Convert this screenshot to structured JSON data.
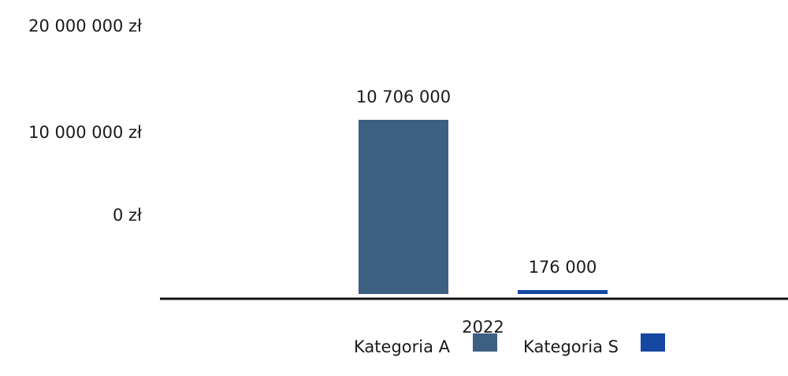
{
  "chart_data": {
    "type": "bar",
    "categories": [
      "2022"
    ],
    "series": [
      {
        "name": "Kategoria A",
        "values": [
          10706000
        ],
        "color": "#3d5f82",
        "label": "10 706 000"
      },
      {
        "name": "Kategoria S",
        "values": [
          176000
        ],
        "color": "#1548a0",
        "label": "176 000"
      }
    ],
    "y_ticks": [
      {
        "value": 20000000,
        "label": "20 000 000 zł"
      },
      {
        "value": 10000000,
        "label": "10 000 000 zł"
      },
      {
        "value": 0,
        "label": "0 zł"
      }
    ],
    "ylim": [
      0,
      20000000
    ],
    "grid": false,
    "legend_position": "bottom",
    "legend_order": "label-then-swatch"
  }
}
